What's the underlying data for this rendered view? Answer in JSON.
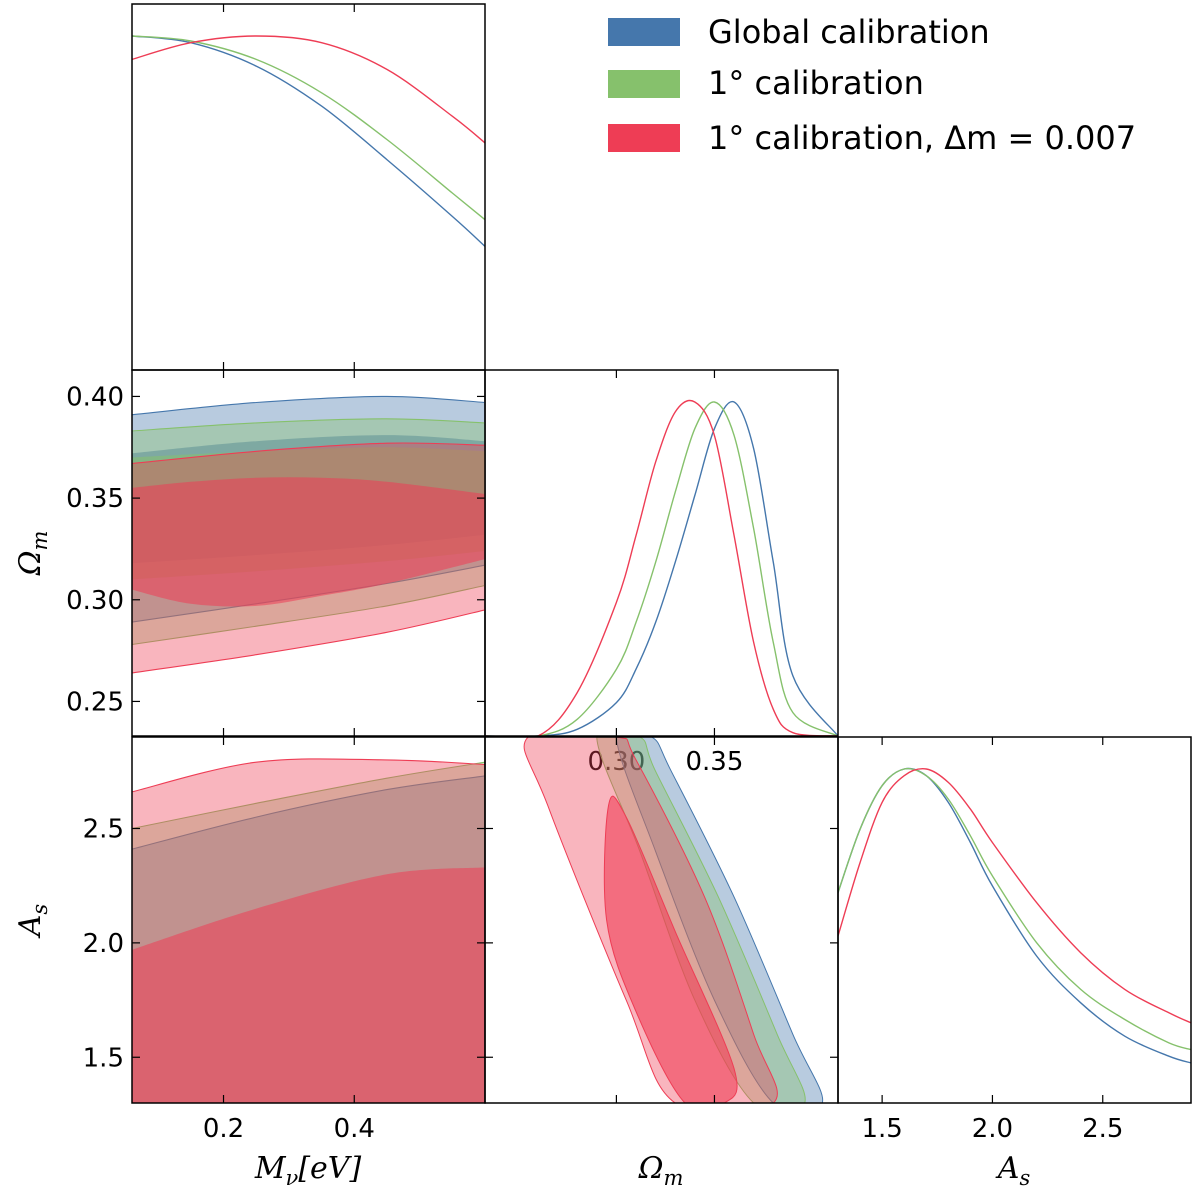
{
  "chart_data": {
    "type": "triangle",
    "legend": {
      "placement": "top-right",
      "entries": [
        {
          "label": "Global calibration",
          "color": "#4577ac"
        },
        {
          "label": "1° calibration",
          "color": "#86c16c"
        },
        {
          "label": "1° calibration, Δm = 0.007",
          "color": "#ee3d55"
        }
      ]
    },
    "parameters": [
      {
        "key": "mnu",
        "label": "M_ν[eV]",
        "range": [
          0.06,
          0.6
        ],
        "ticks": [
          0.2,
          0.4
        ],
        "tick_labels": [
          "0.2",
          "0.4"
        ]
      },
      {
        "key": "om",
        "label": "Ω_m",
        "range": [
          0.233,
          0.413
        ],
        "ticks": [
          0.25,
          0.3,
          0.35,
          0.4
        ],
        "tick_labels": [
          "0.25",
          "0.30",
          "0.35",
          "0.40"
        ],
        "diag_ticks": [
          0.3,
          0.35
        ],
        "diag_tick_labels": [
          "0.30",
          "0.35"
        ]
      },
      {
        "key": "as",
        "label": "A_s",
        "range": [
          1.3,
          2.9
        ],
        "ticks": [
          1.5,
          2.0,
          2.5
        ],
        "tick_labels": [
          "1.5",
          "2.0",
          "2.5"
        ]
      }
    ],
    "marginal_1d": {
      "mnu": {
        "x": [
          0.06,
          0.15,
          0.25,
          0.35,
          0.45,
          0.55,
          0.6
        ],
        "series": [
          {
            "name": "Global calibration",
            "y": [
              1.0,
              0.98,
              0.91,
              0.79,
              0.63,
              0.46,
              0.37
            ]
          },
          {
            "name": "1° calibration",
            "y": [
              1.0,
              0.985,
              0.93,
              0.83,
              0.69,
              0.53,
              0.45
            ]
          },
          {
            "name": "1° calibration, Δm = 0.007",
            "y": [
              0.93,
              0.98,
              1.0,
              0.98,
              0.9,
              0.76,
              0.68
            ]
          }
        ]
      },
      "om": {
        "x": [
          0.233,
          0.26,
          0.28,
          0.3,
          0.31,
          0.32,
          0.33,
          0.34,
          0.35,
          0.36,
          0.37,
          0.38,
          0.39,
          0.413
        ],
        "series": [
          {
            "name": "Global calibration",
            "y": [
              0.0,
              0.0,
              0.02,
              0.1,
              0.2,
              0.34,
              0.52,
              0.72,
              0.92,
              1.0,
              0.86,
              0.52,
              0.18,
              0.0
            ]
          },
          {
            "name": "1° calibration",
            "y": [
              0.0,
              0.0,
              0.05,
              0.2,
              0.34,
              0.52,
              0.73,
              0.92,
              1.0,
              0.9,
              0.62,
              0.28,
              0.07,
              0.0
            ]
          },
          {
            "name": "1° calibration, Δm = 0.007",
            "y": [
              0.0,
              0.0,
              0.13,
              0.4,
              0.6,
              0.82,
              0.97,
              1.0,
              0.9,
              0.6,
              0.28,
              0.08,
              0.01,
              0.0
            ]
          }
        ]
      },
      "as": {
        "x": [
          1.3,
          1.4,
          1.5,
          1.6,
          1.7,
          1.8,
          1.9,
          2.0,
          2.2,
          2.4,
          2.6,
          2.8,
          2.9
        ],
        "series": [
          {
            "name": "Global calibration",
            "y": [
              0.63,
              0.82,
              0.95,
              1.0,
              0.98,
              0.9,
              0.78,
              0.65,
              0.44,
              0.3,
              0.2,
              0.14,
              0.12
            ]
          },
          {
            "name": "1° calibration",
            "y": [
              0.63,
              0.82,
              0.95,
              1.0,
              0.98,
              0.91,
              0.8,
              0.68,
              0.48,
              0.34,
              0.25,
              0.18,
              0.16
            ]
          },
          {
            "name": "1° calibration, Δm = 0.007",
            "y": [
              0.5,
              0.72,
              0.9,
              0.98,
              1.0,
              0.96,
              0.88,
              0.78,
              0.6,
              0.45,
              0.34,
              0.27,
              0.24
            ]
          }
        ]
      }
    },
    "contours_2d": {
      "om_vs_mnu": [
        {
          "name": "Global calibration",
          "outer": {
            "x": [
              0.06,
              0.25,
              0.45,
              0.6
            ],
            "upper": [
              0.391,
              0.397,
              0.4,
              0.397
            ],
            "lower": [
              0.289,
              0.298,
              0.308,
              0.317
            ]
          },
          "inner": {
            "x": [
              0.06,
              0.25,
              0.45,
              0.6
            ],
            "upper": [
              0.372,
              0.378,
              0.381,
              0.378
            ],
            "lower": [
              0.318,
              0.322,
              0.327,
              0.332
            ]
          }
        },
        {
          "name": "1° calibration",
          "outer": {
            "x": [
              0.06,
              0.25,
              0.45,
              0.6
            ],
            "upper": [
              0.383,
              0.387,
              0.389,
              0.387
            ],
            "lower": [
              0.278,
              0.287,
              0.297,
              0.307
            ]
          },
          "inner": {
            "x": [
              0.06,
              0.25,
              0.45,
              0.6
            ],
            "upper": [
              0.37,
              0.373,
              0.375,
              0.373
            ],
            "lower": [
              0.31,
              0.314,
              0.319,
              0.324
            ]
          }
        },
        {
          "name": "1° calibration, Δm = 0.007",
          "outer": {
            "x": [
              0.06,
              0.25,
              0.45,
              0.6
            ],
            "upper": [
              0.367,
              0.373,
              0.377,
              0.376
            ],
            "lower": [
              0.264,
              0.273,
              0.284,
              0.295
            ]
          },
          "inner": {
            "x": [
              0.06,
              0.15,
              0.25,
              0.35,
              0.45,
              0.6
            ],
            "upper": [
              0.355,
              0.358,
              0.36,
              0.36,
              0.358,
              0.352
            ],
            "lower": [
              0.305,
              0.298,
              0.297,
              0.302,
              0.308,
              0.32
            ]
          }
        }
      ],
      "as_vs_mnu": [
        {
          "name": "Global calibration",
          "outer": {
            "x": [
              0.06,
              0.25,
              0.45,
              0.6
            ],
            "upper": [
              2.41,
              2.55,
              2.67,
              2.73
            ],
            "lower": [
              1.3,
              1.3,
              1.3,
              1.3
            ]
          }
        },
        {
          "name": "1° calibration",
          "outer": {
            "x": [
              0.06,
              0.25,
              0.45,
              0.6
            ],
            "upper": [
              2.5,
              2.61,
              2.72,
              2.79
            ],
            "lower": [
              1.3,
              1.3,
              1.3,
              1.3
            ]
          }
        },
        {
          "name": "1° calibration, Δm = 0.007",
          "outer": {
            "x": [
              0.06,
              0.25,
              0.45,
              0.6
            ],
            "upper": [
              2.66,
              2.79,
              2.8,
              2.78
            ],
            "lower": [
              1.3,
              1.3,
              1.3,
              1.3
            ]
          },
          "inner": {
            "x": [
              0.06,
              0.25,
              0.45,
              0.6
            ],
            "upper": [
              1.97,
              2.15,
              2.3,
              2.33
            ],
            "lower": [
              1.3,
              1.3,
              1.3,
              1.3
            ]
          }
        }
      ],
      "as_vs_om": [
        {
          "name": "Global calibration",
          "outer": [
            [
              0.3,
              2.9
            ],
            [
              0.318,
              2.9
            ],
            [
              0.328,
              2.75
            ],
            [
              0.36,
              2.2
            ],
            [
              0.39,
              1.6
            ],
            [
              0.405,
              1.3
            ],
            [
              0.38,
              1.3
            ],
            [
              0.35,
              1.75
            ],
            [
              0.32,
              2.4
            ]
          ]
        },
        {
          "name": "1° calibration",
          "outer": [
            [
              0.29,
              2.9
            ],
            [
              0.312,
              2.9
            ],
            [
              0.32,
              2.75
            ],
            [
              0.352,
              2.2
            ],
            [
              0.382,
              1.6
            ],
            [
              0.396,
              1.3
            ],
            [
              0.37,
              1.3
            ],
            [
              0.34,
              1.75
            ],
            [
              0.312,
              2.4
            ]
          ]
        },
        {
          "name": "1° calibration, Δm = 0.007",
          "outer": [
            [
              0.255,
              2.9
            ],
            [
              0.3,
              2.9
            ],
            [
              0.31,
              2.8
            ],
            [
              0.345,
              2.2
            ],
            [
              0.37,
              1.6
            ],
            [
              0.38,
              1.3
            ],
            [
              0.33,
              1.3
            ],
            [
              0.305,
              1.75
            ],
            [
              0.265,
              2.6
            ]
          ],
          "inner": [
            [
              0.296,
              2.6
            ],
            [
              0.305,
              2.55
            ],
            [
              0.33,
              2.05
            ],
            [
              0.36,
              1.45
            ],
            [
              0.355,
              1.3
            ],
            [
              0.335,
              1.3
            ],
            [
              0.31,
              1.7
            ],
            [
              0.295,
              2.1
            ]
          ]
        }
      ]
    }
  }
}
